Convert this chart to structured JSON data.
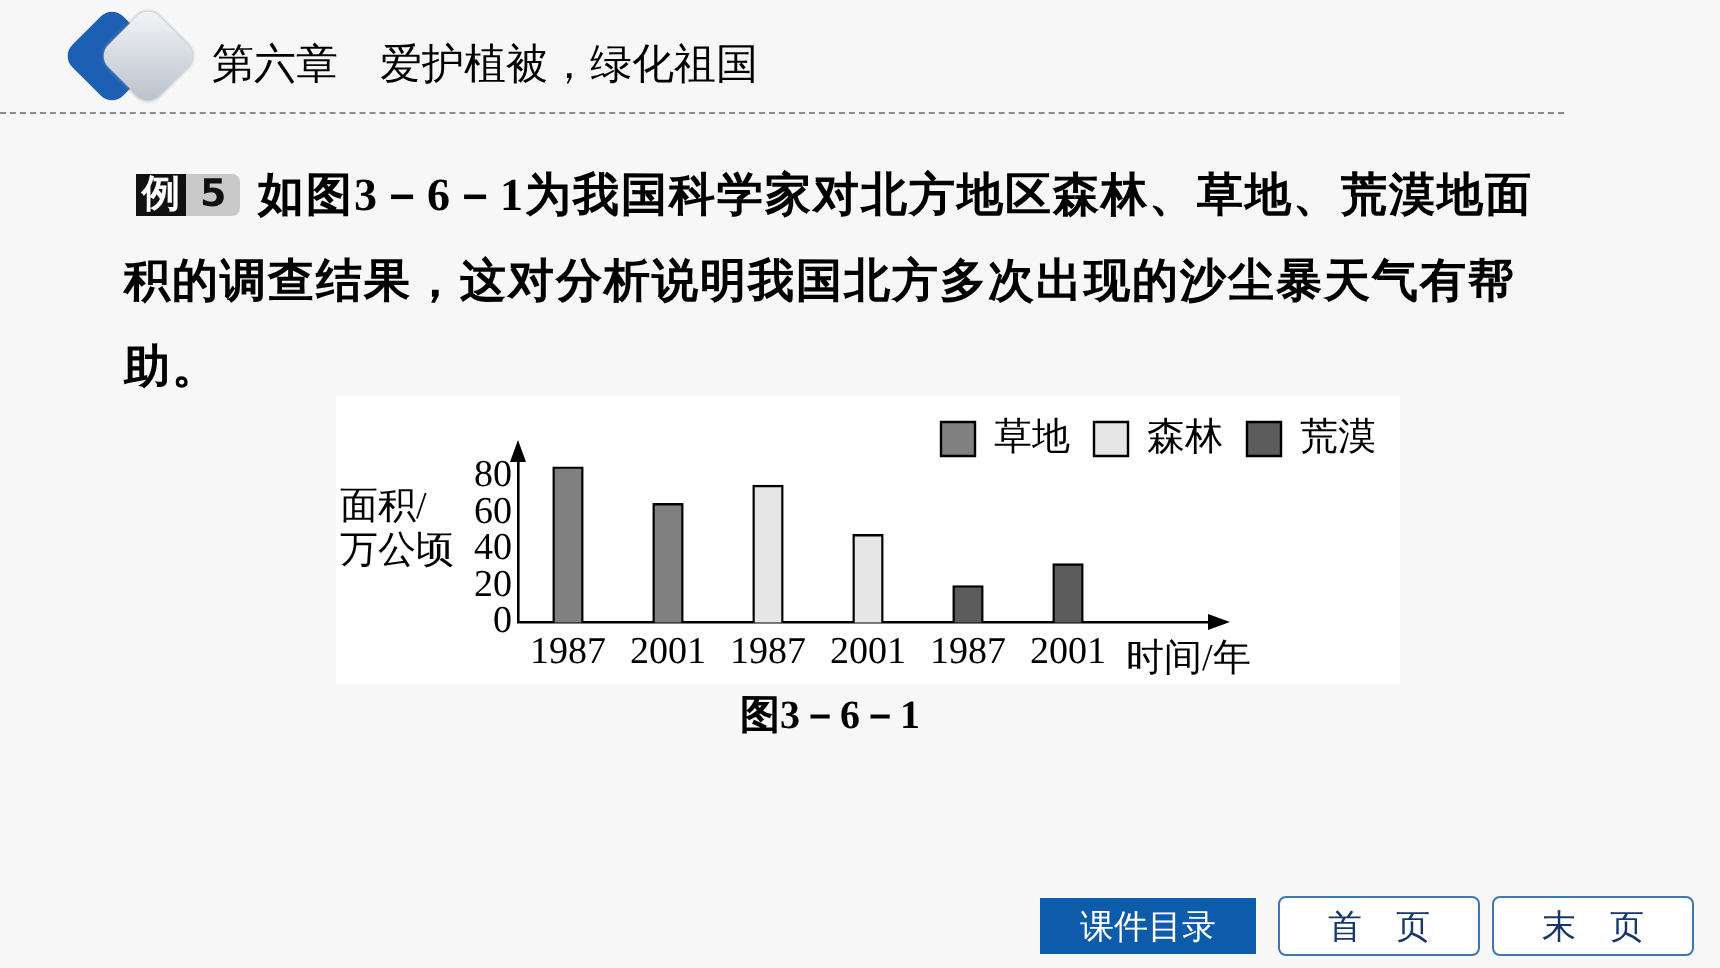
{
  "chart_data": {
    "type": "bar",
    "title": "第六章　爱护植被，绿化祖国",
    "subtitle": "例 5 如图3－6－1为我国科学家对北方地区森林、草地、荒漠地面积的调查结果，这对分析说明我国北方多次出现的沙尘暴天气有帮助。",
    "xlabel": "时间/年",
    "ylabel": "面积/万公顷",
    "annotations": [
      "图3－6－1",
      "课件目录",
      "首　页",
      "末　页"
    ],
    "categories": [
      "1987",
      "2001",
      "1987",
      "2001",
      "1987",
      "2001"
    ],
    "series": [
      {
        "name": "草地",
        "color": "#808080",
        "values": [
          85,
          65,
          null,
          null,
          null,
          null
        ]
      },
      {
        "name": "森林",
        "color": "#e6e6e6",
        "values": [
          null,
          null,
          75,
          48,
          null,
          null
        ]
      },
      {
        "name": "荒漠",
        "color": "#5c5c5c",
        "values": [
          null,
          null,
          null,
          null,
          20,
          32
        ]
      }
    ],
    "ylim": [
      0,
      90
    ],
    "yticks": [
      0,
      20,
      40,
      60,
      80
    ],
    "legend": "top right"
  }
}
